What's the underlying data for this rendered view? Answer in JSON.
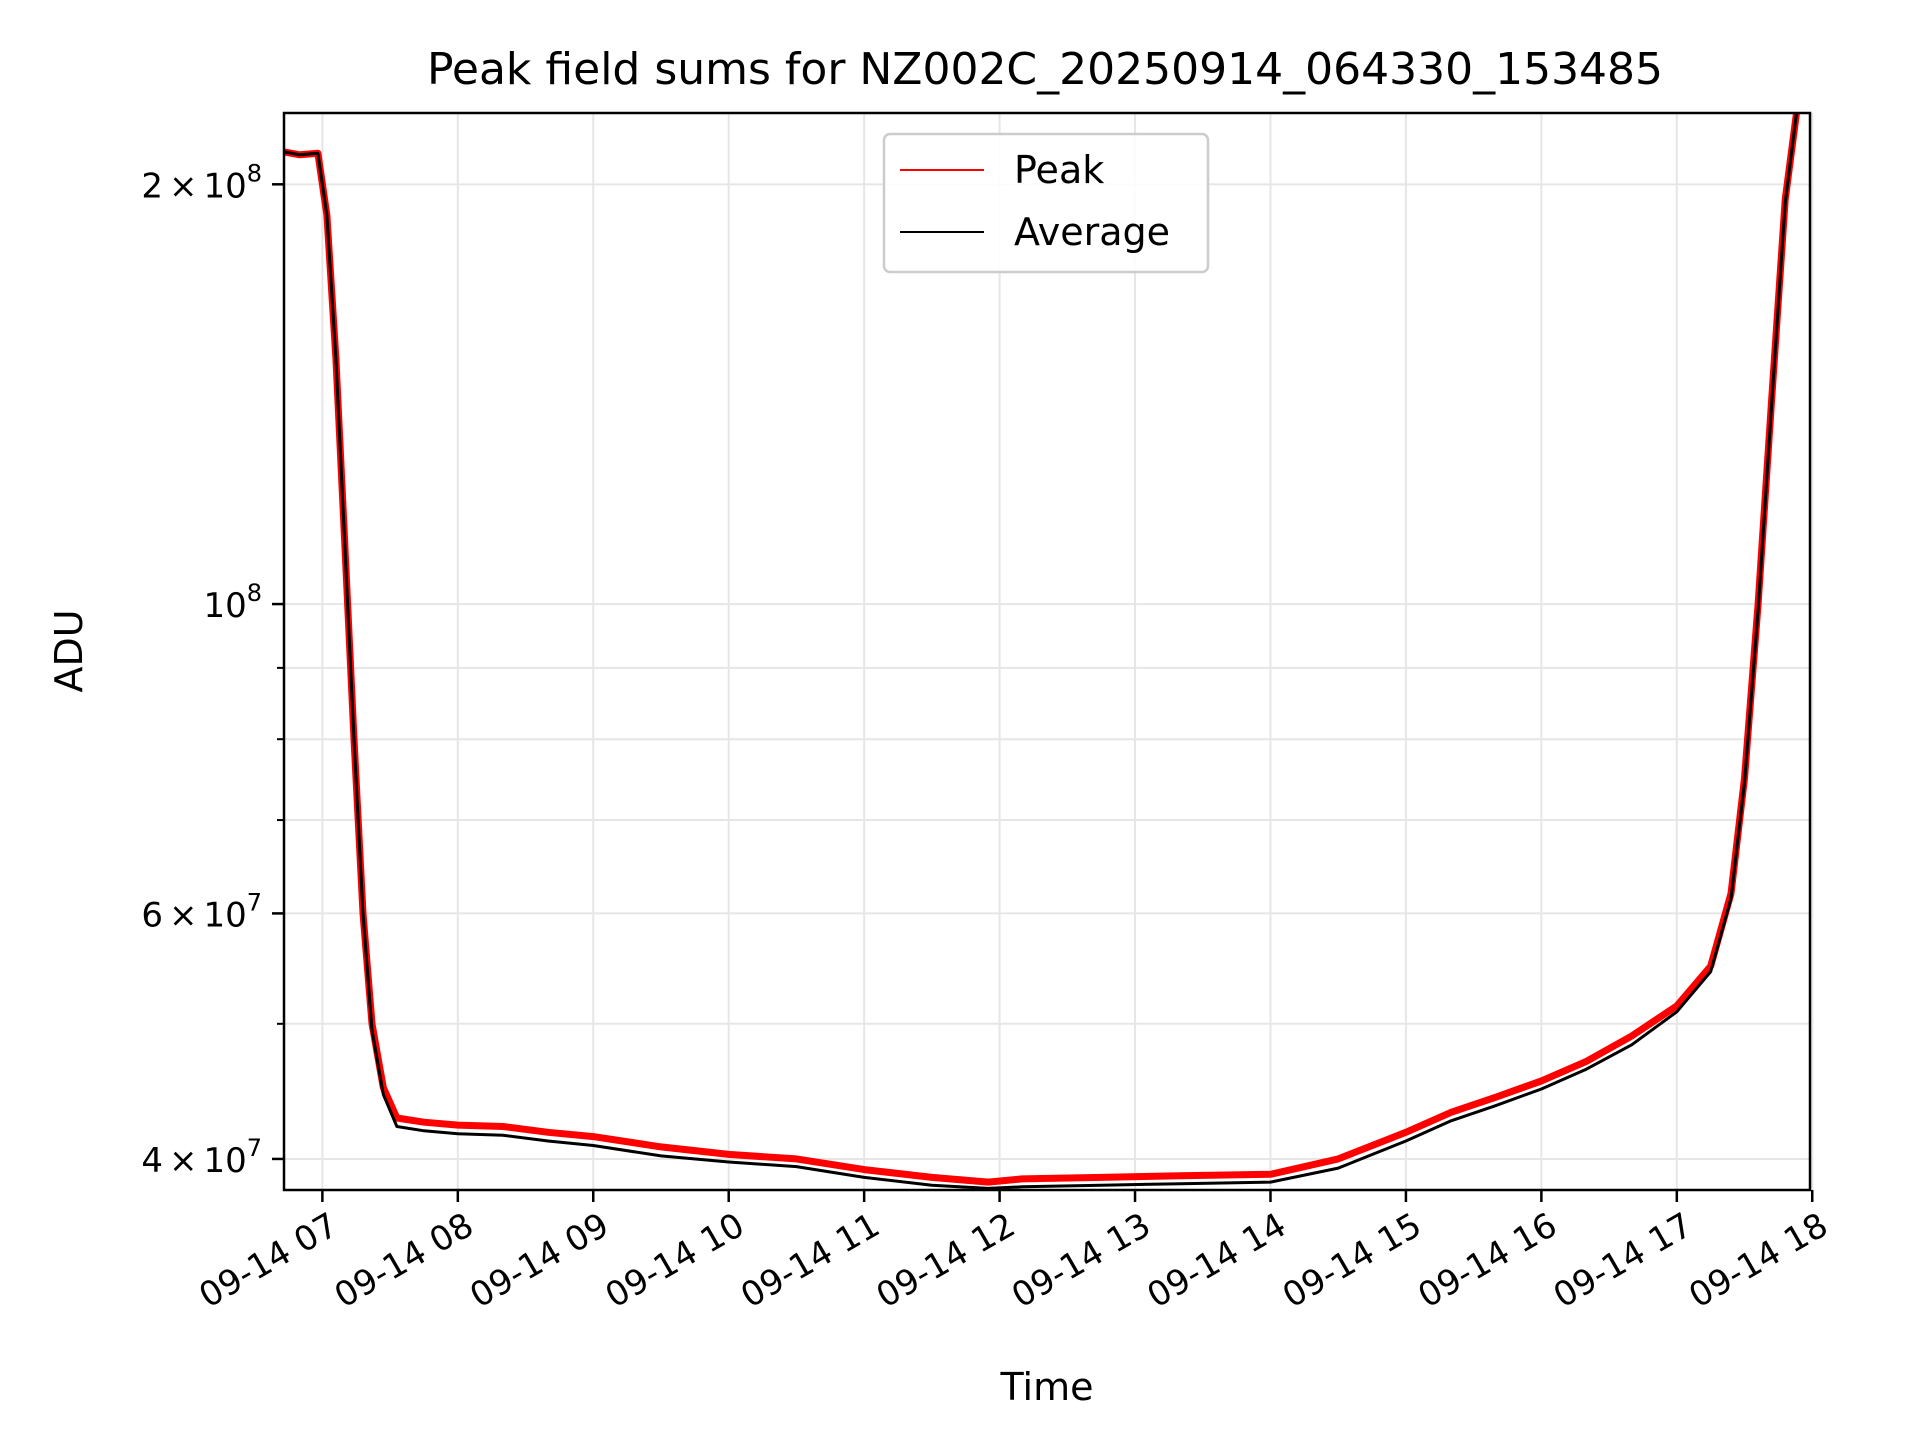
{
  "chart_data": {
    "type": "line",
    "title": "Peak field sums for NZ002C_20250914_064330_153485",
    "xlabel": "Time",
    "ylabel": "ADU",
    "yscale": "log",
    "grid": true,
    "legend_position": "upper center",
    "xlim": [
      "2025-09-14 06:43",
      "2025-09-14 17:59"
    ],
    "ylim": [
      38000000,
      225000000
    ],
    "x_ticks": [
      {
        "value": "2025-09-14 07:00",
        "label": "09-14 07"
      },
      {
        "value": "2025-09-14 08:00",
        "label": "09-14 08"
      },
      {
        "value": "2025-09-14 09:00",
        "label": "09-14 09"
      },
      {
        "value": "2025-09-14 10:00",
        "label": "09-14 10"
      },
      {
        "value": "2025-09-14 11:00",
        "label": "09-14 11"
      },
      {
        "value": "2025-09-14 12:00",
        "label": "09-14 12"
      },
      {
        "value": "2025-09-14 13:00",
        "label": "09-14 13"
      },
      {
        "value": "2025-09-14 14:00",
        "label": "09-14 14"
      },
      {
        "value": "2025-09-14 15:00",
        "label": "09-14 15"
      },
      {
        "value": "2025-09-14 16:00",
        "label": "09-14 16"
      },
      {
        "value": "2025-09-14 17:00",
        "label": "09-14 17"
      },
      {
        "value": "2025-09-14 18:00",
        "label": "09-14 18"
      }
    ],
    "y_major_ticks": [
      {
        "value": 40000000,
        "mantissa": "4",
        "base": "10",
        "exp": "7"
      },
      {
        "value": 60000000,
        "mantissa": "6",
        "base": "10",
        "exp": "7"
      },
      {
        "value": 100000000,
        "mantissa": "",
        "base": "10",
        "exp": "8"
      },
      {
        "value": 200000000,
        "mantissa": "2",
        "base": "10",
        "exp": "8"
      }
    ],
    "y_minor_ticks": [
      50000000,
      70000000,
      80000000,
      90000000
    ],
    "series": [
      {
        "name": "Peak",
        "color": "#ff0000",
        "points": [
          [
            "2025-09-14 06:43",
            211000000
          ],
          [
            "2025-09-14 06:50",
            210000000
          ],
          [
            "2025-09-14 06:58",
            210500000
          ],
          [
            "2025-09-14 07:02",
            190000000
          ],
          [
            "2025-09-14 07:06",
            150000000
          ],
          [
            "2025-09-14 07:10",
            110000000
          ],
          [
            "2025-09-14 07:14",
            80000000
          ],
          [
            "2025-09-14 07:18",
            60000000
          ],
          [
            "2025-09-14 07:22",
            50000000
          ],
          [
            "2025-09-14 07:27",
            45000000
          ],
          [
            "2025-09-14 07:33",
            42800000
          ],
          [
            "2025-09-14 07:45",
            42500000
          ],
          [
            "2025-09-14 08:00",
            42300000
          ],
          [
            "2025-09-14 08:20",
            42200000
          ],
          [
            "2025-09-14 08:40",
            41800000
          ],
          [
            "2025-09-14 09:00",
            41500000
          ],
          [
            "2025-09-14 09:30",
            40800000
          ],
          [
            "2025-09-14 10:00",
            40300000
          ],
          [
            "2025-09-14 10:30",
            40000000
          ],
          [
            "2025-09-14 11:00",
            39300000
          ],
          [
            "2025-09-14 11:30",
            38800000
          ],
          [
            "2025-09-14 11:55",
            38500000
          ],
          [
            "2025-09-14 12:10",
            38700000
          ],
          [
            "2025-09-14 12:45",
            38800000
          ],
          [
            "2025-09-14 13:20",
            38900000
          ],
          [
            "2025-09-14 14:00",
            39000000
          ],
          [
            "2025-09-14 14:30",
            40000000
          ],
          [
            "2025-09-14 15:00",
            41800000
          ],
          [
            "2025-09-14 15:20",
            43200000
          ],
          [
            "2025-09-14 15:40",
            44300000
          ],
          [
            "2025-09-14 16:00",
            45500000
          ],
          [
            "2025-09-14 16:20",
            47000000
          ],
          [
            "2025-09-14 16:40",
            49000000
          ],
          [
            "2025-09-14 17:00",
            51500000
          ],
          [
            "2025-09-14 17:15",
            55000000
          ],
          [
            "2025-09-14 17:24",
            62000000
          ],
          [
            "2025-09-14 17:30",
            75000000
          ],
          [
            "2025-09-14 17:36",
            100000000
          ],
          [
            "2025-09-14 17:42",
            140000000
          ],
          [
            "2025-09-14 17:48",
            195000000
          ],
          [
            "2025-09-14 17:53",
            225000000
          ]
        ]
      },
      {
        "name": "Average",
        "color": "#000000",
        "points": [
          [
            "2025-09-14 06:43",
            211000000
          ],
          [
            "2025-09-14 06:50",
            210000000
          ],
          [
            "2025-09-14 06:58",
            210500000
          ],
          [
            "2025-09-14 07:02",
            190000000
          ],
          [
            "2025-09-14 07:06",
            150000000
          ],
          [
            "2025-09-14 07:10",
            110000000
          ],
          [
            "2025-09-14 07:14",
            80000000
          ],
          [
            "2025-09-14 07:18",
            60000000
          ],
          [
            "2025-09-14 07:22",
            49500000
          ],
          [
            "2025-09-14 07:27",
            44500000
          ],
          [
            "2025-09-14 07:33",
            42200000
          ],
          [
            "2025-09-14 07:45",
            41900000
          ],
          [
            "2025-09-14 08:00",
            41700000
          ],
          [
            "2025-09-14 08:20",
            41600000
          ],
          [
            "2025-09-14 08:40",
            41200000
          ],
          [
            "2025-09-14 09:00",
            40900000
          ],
          [
            "2025-09-14 09:30",
            40200000
          ],
          [
            "2025-09-14 10:00",
            39800000
          ],
          [
            "2025-09-14 10:30",
            39500000
          ],
          [
            "2025-09-14 11:00",
            38800000
          ],
          [
            "2025-09-14 11:30",
            38300000
          ],
          [
            "2025-09-14 11:55",
            38100000
          ],
          [
            "2025-09-14 12:10",
            38200000
          ],
          [
            "2025-09-14 12:45",
            38300000
          ],
          [
            "2025-09-14 13:20",
            38400000
          ],
          [
            "2025-09-14 14:00",
            38500000
          ],
          [
            "2025-09-14 14:30",
            39400000
          ],
          [
            "2025-09-14 15:00",
            41200000
          ],
          [
            "2025-09-14 15:20",
            42600000
          ],
          [
            "2025-09-14 15:40",
            43700000
          ],
          [
            "2025-09-14 16:00",
            44900000
          ],
          [
            "2025-09-14 16:20",
            46400000
          ],
          [
            "2025-09-14 16:40",
            48300000
          ],
          [
            "2025-09-14 17:00",
            51000000
          ],
          [
            "2025-09-14 17:15",
            54500000
          ],
          [
            "2025-09-14 17:24",
            61500000
          ],
          [
            "2025-09-14 17:30",
            74500000
          ],
          [
            "2025-09-14 17:36",
            99000000
          ],
          [
            "2025-09-14 17:42",
            139000000
          ],
          [
            "2025-09-14 17:48",
            194000000
          ],
          [
            "2025-09-14 17:53",
            225000000
          ]
        ]
      }
    ]
  }
}
